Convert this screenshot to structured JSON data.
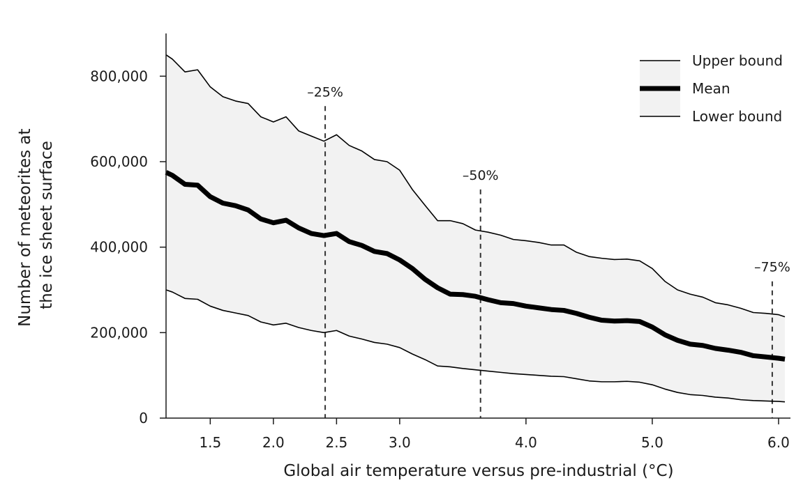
{
  "chart_data": {
    "type": "area",
    "xlabel": "Global air temperature versus pre-industrial (°C)",
    "ylabel_lines": [
      "Number of meteorites at",
      "the ice sheet surface"
    ],
    "xlim": [
      1.15,
      6.05
    ],
    "ylim": [
      0,
      900000
    ],
    "x_ticks": [
      1.5,
      2.0,
      2.5,
      3.0,
      4.0,
      5.0,
      6.0
    ],
    "x_tick_labels": [
      "1.5",
      "2.0",
      "2.5",
      "3.0",
      "4.0",
      "5.0",
      "6.0"
    ],
    "y_ticks": [
      0,
      200000,
      400000,
      600000,
      800000
    ],
    "y_tick_labels": [
      "0",
      "200,000",
      "400,000",
      "600,000",
      "800,000"
    ],
    "grid": false,
    "legend_position": "top-right",
    "series": [
      {
        "name": "Upper bound",
        "x": [
          1.15,
          1.2,
          1.3,
          1.4,
          1.5,
          1.6,
          1.7,
          1.8,
          1.9,
          2.0,
          2.1,
          2.2,
          2.3,
          2.4,
          2.5,
          2.6,
          2.7,
          2.8,
          2.9,
          3.0,
          3.1,
          3.2,
          3.3,
          3.4,
          3.5,
          3.6,
          3.7,
          3.8,
          3.9,
          4.0,
          4.1,
          4.2,
          4.3,
          4.4,
          4.5,
          4.6,
          4.7,
          4.8,
          4.9,
          5.0,
          5.1,
          5.2,
          5.3,
          5.4,
          5.5,
          5.6,
          5.7,
          5.8,
          5.9,
          6.0,
          6.05
        ],
        "values": [
          850000,
          840000,
          810000,
          815000,
          775000,
          752000,
          742000,
          736000,
          705000,
          693000,
          705000,
          672000,
          660000,
          648000,
          663000,
          638000,
          625000,
          605000,
          600000,
          580000,
          535000,
          498000,
          462000,
          462000,
          455000,
          440000,
          435000,
          428000,
          418000,
          415000,
          411000,
          405000,
          405000,
          388000,
          378000,
          374000,
          371000,
          372000,
          368000,
          350000,
          320000,
          300000,
          290000,
          283000,
          270000,
          265000,
          257000,
          247000,
          245000,
          242000,
          237000
        ]
      },
      {
        "name": "Mean",
        "x": [
          1.15,
          1.2,
          1.3,
          1.4,
          1.5,
          1.6,
          1.7,
          1.8,
          1.9,
          2.0,
          2.1,
          2.2,
          2.3,
          2.4,
          2.5,
          2.6,
          2.7,
          2.8,
          2.9,
          3.0,
          3.1,
          3.2,
          3.3,
          3.4,
          3.5,
          3.6,
          3.7,
          3.8,
          3.9,
          4.0,
          4.1,
          4.2,
          4.3,
          4.4,
          4.5,
          4.6,
          4.7,
          4.8,
          4.9,
          5.0,
          5.1,
          5.2,
          5.3,
          5.4,
          5.5,
          5.6,
          5.7,
          5.8,
          5.9,
          6.0,
          6.05
        ],
        "values": [
          575000,
          568000,
          547000,
          545000,
          518000,
          503000,
          497000,
          487000,
          466000,
          457000,
          463000,
          445000,
          432000,
          427000,
          432000,
          413000,
          404000,
          390000,
          385000,
          370000,
          350000,
          325000,
          305000,
          290000,
          289000,
          285000,
          277000,
          270000,
          268000,
          262000,
          258000,
          254000,
          252000,
          245000,
          236000,
          229000,
          227000,
          228000,
          226000,
          213000,
          195000,
          182000,
          173000,
          170000,
          163000,
          159000,
          154000,
          146000,
          143000,
          140000,
          138000
        ]
      },
      {
        "name": "Lower bound",
        "x": [
          1.15,
          1.2,
          1.3,
          1.4,
          1.5,
          1.6,
          1.7,
          1.8,
          1.9,
          2.0,
          2.1,
          2.2,
          2.3,
          2.4,
          2.5,
          2.6,
          2.7,
          2.8,
          2.9,
          3.0,
          3.1,
          3.2,
          3.3,
          3.4,
          3.5,
          3.6,
          3.7,
          3.8,
          3.9,
          4.0,
          4.1,
          4.2,
          4.3,
          4.4,
          4.5,
          4.6,
          4.7,
          4.8,
          4.9,
          5.0,
          5.1,
          5.2,
          5.3,
          5.4,
          5.5,
          5.6,
          5.7,
          5.8,
          5.9,
          6.0,
          6.05
        ],
        "values": [
          300000,
          295000,
          280000,
          278000,
          262000,
          252000,
          246000,
          240000,
          225000,
          218000,
          222000,
          212000,
          205000,
          200000,
          205000,
          192000,
          185000,
          177000,
          173000,
          165000,
          150000,
          137000,
          122000,
          120000,
          116000,
          113000,
          110000,
          107000,
          104000,
          102000,
          100000,
          98000,
          97000,
          92000,
          87000,
          85000,
          85000,
          86000,
          84000,
          78000,
          68000,
          60000,
          55000,
          53000,
          49000,
          47000,
          43000,
          41000,
          40000,
          39000,
          38000
        ]
      }
    ],
    "annotations": [
      {
        "label": "–25%",
        "x": 2.41,
        "y_top": 730000,
        "y_bottom": 0
      },
      {
        "label": "–50%",
        "x": 3.64,
        "y_top": 535000,
        "y_bottom": 0
      },
      {
        "label": "–75%",
        "x": 5.95,
        "y_top": 320000,
        "y_bottom": 0
      }
    ],
    "colors": {
      "band_fill": "#f2f2f2",
      "line": "#000000",
      "axis": "#1a1a1a",
      "annotation": "#333333"
    }
  }
}
